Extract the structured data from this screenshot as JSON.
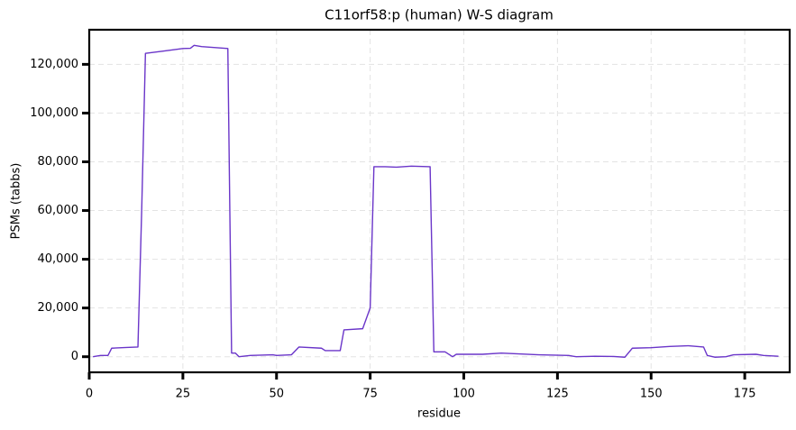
{
  "chart_data": {
    "type": "line",
    "title": "C11orf58:p (human) W-S diagram",
    "x_label": "residue",
    "y_label": "PSMs (tabbs)",
    "x": [
      1,
      3,
      5,
      6,
      10,
      13,
      14,
      15,
      20,
      25,
      27,
      28,
      30,
      37,
      38,
      39,
      40,
      43,
      49,
      50,
      54,
      56,
      62,
      63,
      67,
      68,
      73,
      75,
      76,
      79,
      82,
      86,
      91,
      92,
      95,
      97,
      98,
      105,
      110,
      120,
      128,
      130,
      135,
      140,
      143,
      145,
      150,
      155,
      160,
      164,
      165,
      167,
      170,
      172,
      178,
      180,
      184
    ],
    "series": [
      {
        "name": "C11orf58:p",
        "color": "#6a35c9",
        "values": [
          0,
          500,
          500,
          3500,
          3800,
          4000,
          60000,
          124500,
          125500,
          126500,
          126600,
          127800,
          127300,
          126500,
          1500,
          1500,
          0,
          500,
          800,
          500,
          800,
          4000,
          3500,
          2500,
          2500,
          11000,
          11500,
          20000,
          78000,
          78000,
          77800,
          78200,
          78000,
          2000,
          2000,
          0,
          1000,
          1000,
          1500,
          800,
          500,
          0,
          200,
          100,
          -200,
          3500,
          3700,
          4200,
          4500,
          4000,
          500,
          -200,
          0,
          800,
          1000,
          500,
          200
        ]
      }
    ],
    "xlim": [
      0,
      187
    ],
    "ylim": [
      -6400,
      134200
    ],
    "xticks": [
      0,
      25,
      50,
      75,
      100,
      125,
      150,
      175
    ],
    "yticks": [
      0,
      {
        "value": 20000,
        "label": "20,000"
      },
      {
        "value": 40000,
        "label": "40,000"
      },
      {
        "value": 60000,
        "label": "60,000"
      },
      {
        "value": 80000,
        "label": "80,000"
      },
      {
        "value": 100000,
        "label": "100,000"
      },
      {
        "value": 120000,
        "label": "120,000"
      }
    ],
    "grid": true
  }
}
